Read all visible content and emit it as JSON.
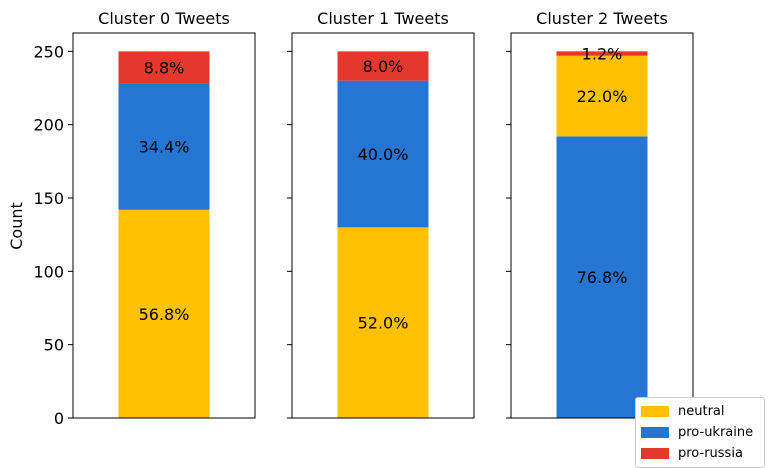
{
  "chart_data": {
    "type": "bar",
    "stacked": true,
    "ylabel": "Count",
    "ylim": [
      0,
      262.5
    ],
    "yticks": [
      "0",
      "50",
      "100",
      "150",
      "200",
      "250"
    ],
    "grid": false,
    "legend_position": "bottom-right",
    "series_colors": {
      "neutral": "#ffc100",
      "pro-ukraine": "#2476d2",
      "pro-russia": "#e5382d"
    },
    "legend": [
      {
        "name": "neutral",
        "color": "#ffc100"
      },
      {
        "name": "pro-ukraine",
        "color": "#2476d2"
      },
      {
        "name": "pro-russia",
        "color": "#e5382d"
      }
    ],
    "panels": [
      {
        "title": "Cluster 0 Tweets",
        "segments": [
          {
            "series": "neutral",
            "value": 142,
            "label": "56.8%"
          },
          {
            "series": "pro-ukraine",
            "value": 86,
            "label": "34.4%"
          },
          {
            "series": "pro-russia",
            "value": 22,
            "label": "8.8%"
          }
        ]
      },
      {
        "title": "Cluster 1 Tweets",
        "segments": [
          {
            "series": "neutral",
            "value": 130,
            "label": "52.0%"
          },
          {
            "series": "pro-ukraine",
            "value": 100,
            "label": "40.0%"
          },
          {
            "series": "pro-russia",
            "value": 20,
            "label": "8.0%"
          }
        ]
      },
      {
        "title": "Cluster 2 Tweets",
        "segments": [
          {
            "series": "pro-ukraine",
            "value": 192,
            "label": "76.8%"
          },
          {
            "series": "neutral",
            "value": 55,
            "label": "22.0%"
          },
          {
            "series": "pro-russia",
            "value": 3,
            "label": "1.2%"
          }
        ]
      }
    ]
  }
}
